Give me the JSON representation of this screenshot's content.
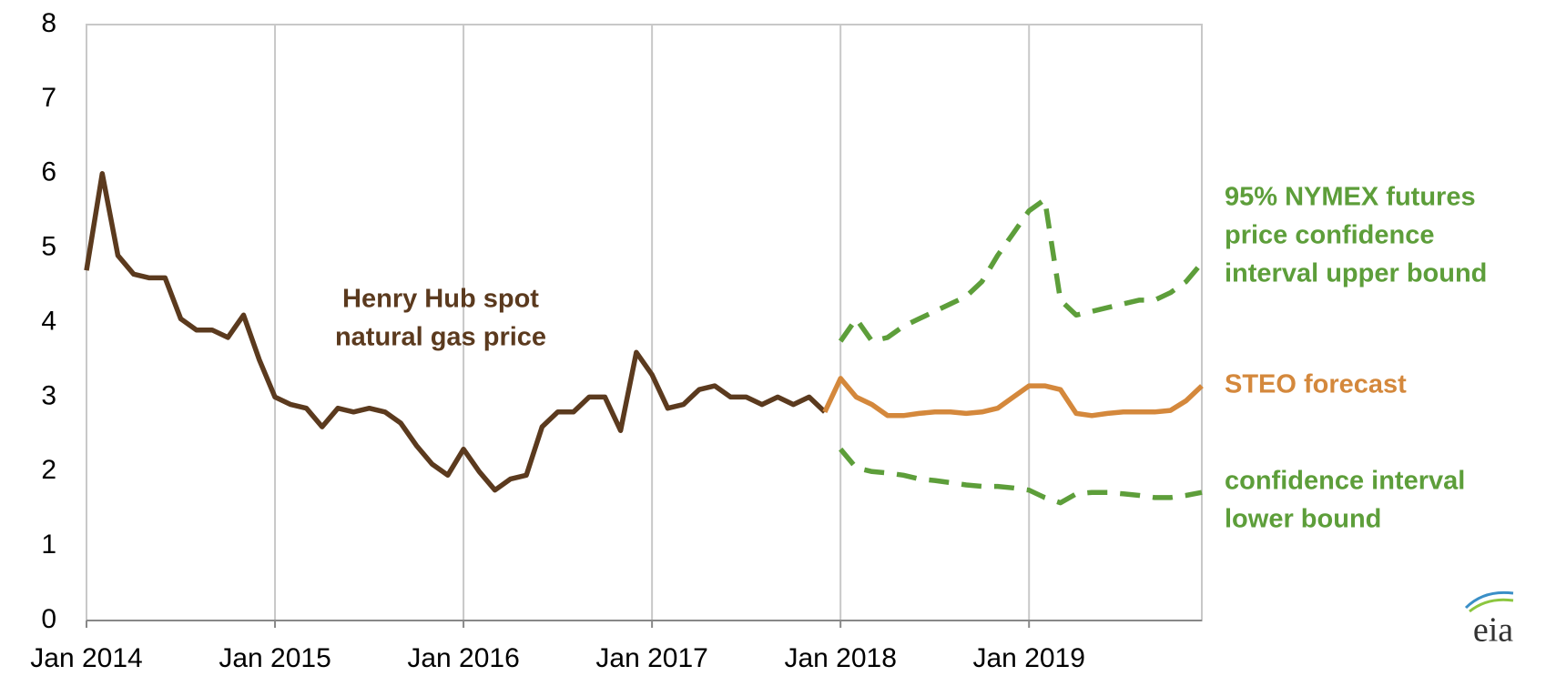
{
  "chart_data": {
    "type": "line",
    "x": [
      "Jan 2014",
      "Feb 2014",
      "Mar 2014",
      "Apr 2014",
      "May 2014",
      "Jun 2014",
      "Jul 2014",
      "Aug 2014",
      "Sep 2014",
      "Oct 2014",
      "Nov 2014",
      "Dec 2014",
      "Jan 2015",
      "Feb 2015",
      "Mar 2015",
      "Apr 2015",
      "May 2015",
      "Jun 2015",
      "Jul 2015",
      "Aug 2015",
      "Sep 2015",
      "Oct 2015",
      "Nov 2015",
      "Dec 2015",
      "Jan 2016",
      "Feb 2016",
      "Mar 2016",
      "Apr 2016",
      "May 2016",
      "Jun 2016",
      "Jul 2016",
      "Aug 2016",
      "Sep 2016",
      "Oct 2016",
      "Nov 2016",
      "Dec 2016",
      "Jan 2017",
      "Feb 2017",
      "Mar 2017",
      "Apr 2017",
      "May 2017",
      "Jun 2017",
      "Jul 2017",
      "Aug 2017",
      "Sep 2017",
      "Oct 2017",
      "Nov 2017",
      "Dec 2017",
      "Jan 2018",
      "Feb 2018",
      "Mar 2018",
      "Apr 2018",
      "May 2018",
      "Jun 2018",
      "Jul 2018",
      "Aug 2018",
      "Sep 2018",
      "Oct 2018",
      "Nov 2018",
      "Dec 2018",
      "Jan 2019",
      "Feb 2019",
      "Mar 2019",
      "Apr 2019",
      "May 2019",
      "Jun 2019",
      "Jul 2019",
      "Aug 2019",
      "Sep 2019",
      "Oct 2019",
      "Nov 2019",
      "Dec 2019"
    ],
    "xticks": [
      "Jan 2014",
      "Jan 2015",
      "Jan 2016",
      "Jan 2017",
      "Jan 2018",
      "Jan 2019"
    ],
    "ylim": [
      0,
      8
    ],
    "yticks": [
      0,
      1,
      2,
      3,
      4,
      5,
      6,
      7,
      8
    ],
    "grid": "x",
    "series": [
      {
        "label": [
          "Henry Hub spot",
          "natural gas price"
        ],
        "color": "#5b3a1e",
        "dashed": false,
        "values": [
          4.7,
          6.0,
          4.9,
          4.65,
          4.6,
          4.6,
          4.05,
          3.9,
          3.9,
          3.8,
          4.1,
          3.5,
          3.0,
          2.9,
          2.85,
          2.6,
          2.85,
          2.8,
          2.85,
          2.8,
          2.65,
          2.35,
          2.1,
          1.95,
          2.3,
          2.0,
          1.75,
          1.9,
          1.95,
          2.6,
          2.8,
          2.8,
          3.0,
          3.0,
          2.55,
          3.6,
          3.3,
          2.85,
          2.9,
          3.1,
          3.15,
          3.0,
          3.0,
          2.9,
          3.0,
          2.9,
          3.0,
          2.8,
          null,
          null,
          null,
          null,
          null,
          null,
          null,
          null,
          null,
          null,
          null,
          null,
          null,
          null,
          null,
          null,
          null,
          null,
          null,
          null,
          null,
          null,
          null,
          null
        ]
      },
      {
        "label": [
          "STEO forecast"
        ],
        "color": "#d4883c",
        "dashed": false,
        "values": [
          null,
          null,
          null,
          null,
          null,
          null,
          null,
          null,
          null,
          null,
          null,
          null,
          null,
          null,
          null,
          null,
          null,
          null,
          null,
          null,
          null,
          null,
          null,
          null,
          null,
          null,
          null,
          null,
          null,
          null,
          null,
          null,
          null,
          null,
          null,
          null,
          null,
          null,
          null,
          null,
          null,
          null,
          null,
          null,
          null,
          null,
          null,
          2.8,
          3.25,
          3.0,
          2.9,
          2.75,
          2.75,
          2.78,
          2.8,
          2.8,
          2.78,
          2.8,
          2.85,
          3.0,
          3.15,
          3.15,
          3.1,
          2.78,
          2.75,
          2.78,
          2.8,
          2.8,
          2.8,
          2.82,
          2.95,
          3.15
        ]
      },
      {
        "label": [
          "95% NYMEX futures",
          "price confidence",
          "interval upper bound"
        ],
        "color": "#5d9e3a",
        "dashed": true,
        "values": [
          null,
          null,
          null,
          null,
          null,
          null,
          null,
          null,
          null,
          null,
          null,
          null,
          null,
          null,
          null,
          null,
          null,
          null,
          null,
          null,
          null,
          null,
          null,
          null,
          null,
          null,
          null,
          null,
          null,
          null,
          null,
          null,
          null,
          null,
          null,
          null,
          null,
          null,
          null,
          null,
          null,
          null,
          null,
          null,
          null,
          null,
          null,
          null,
          3.75,
          4.05,
          3.75,
          3.8,
          3.95,
          4.05,
          4.15,
          4.25,
          4.35,
          4.55,
          4.9,
          5.2,
          5.5,
          5.65,
          4.3,
          4.1,
          4.15,
          4.2,
          4.25,
          4.3,
          4.3,
          4.4,
          4.55,
          4.8
        ]
      },
      {
        "label": [
          "confidence interval",
          "lower bound"
        ],
        "color": "#5d9e3a",
        "dashed": true,
        "values": [
          null,
          null,
          null,
          null,
          null,
          null,
          null,
          null,
          null,
          null,
          null,
          null,
          null,
          null,
          null,
          null,
          null,
          null,
          null,
          null,
          null,
          null,
          null,
          null,
          null,
          null,
          null,
          null,
          null,
          null,
          null,
          null,
          null,
          null,
          null,
          null,
          null,
          null,
          null,
          null,
          null,
          null,
          null,
          null,
          null,
          null,
          null,
          null,
          2.3,
          2.05,
          2.0,
          1.98,
          1.95,
          1.9,
          1.88,
          1.85,
          1.82,
          1.8,
          1.8,
          1.78,
          1.75,
          1.65,
          1.58,
          1.7,
          1.72,
          1.72,
          1.7,
          1.68,
          1.65,
          1.65,
          1.68,
          1.72
        ]
      }
    ],
    "logo": "eia"
  }
}
